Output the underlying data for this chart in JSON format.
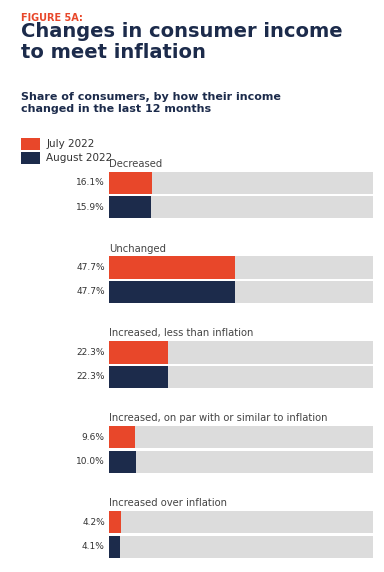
{
  "figure_label": "FIGURE 5A:",
  "title": "Changes in consumer income\nto meet inflation",
  "subtitle": "Share of consumers, by how their income\nchanged in the last 12 months",
  "legend": [
    "July 2022",
    "August 2022"
  ],
  "legend_colors": [
    "#E8472A",
    "#1B2A4A"
  ],
  "categories": [
    "Decreased",
    "Unchanged",
    "Increased, less than inflation",
    "Increased, on par with or similar to inflation",
    "Increased over inflation"
  ],
  "july_values": [
    16.1,
    47.7,
    22.3,
    9.6,
    4.2
  ],
  "august_values": [
    15.9,
    47.7,
    22.3,
    10.0,
    4.1
  ],
  "july_labels": [
    "16.1%",
    "47.7%",
    "22.3%",
    "9.6%",
    "4.2%"
  ],
  "august_labels": [
    "15.9%",
    "47.7%",
    "22.3%",
    "10.0%",
    "4.1%"
  ],
  "bar_color_july": "#E8472A",
  "bar_color_august": "#1C2B4B",
  "bar_bg_color": "#DCDCDC",
  "max_val": 100,
  "background_color": "#FFFFFF",
  "figure_label_color": "#E8472A",
  "title_color": "#1C2B4B",
  "subtitle_color": "#1C2B4B",
  "category_color": "#444444",
  "label_color": "#333333"
}
